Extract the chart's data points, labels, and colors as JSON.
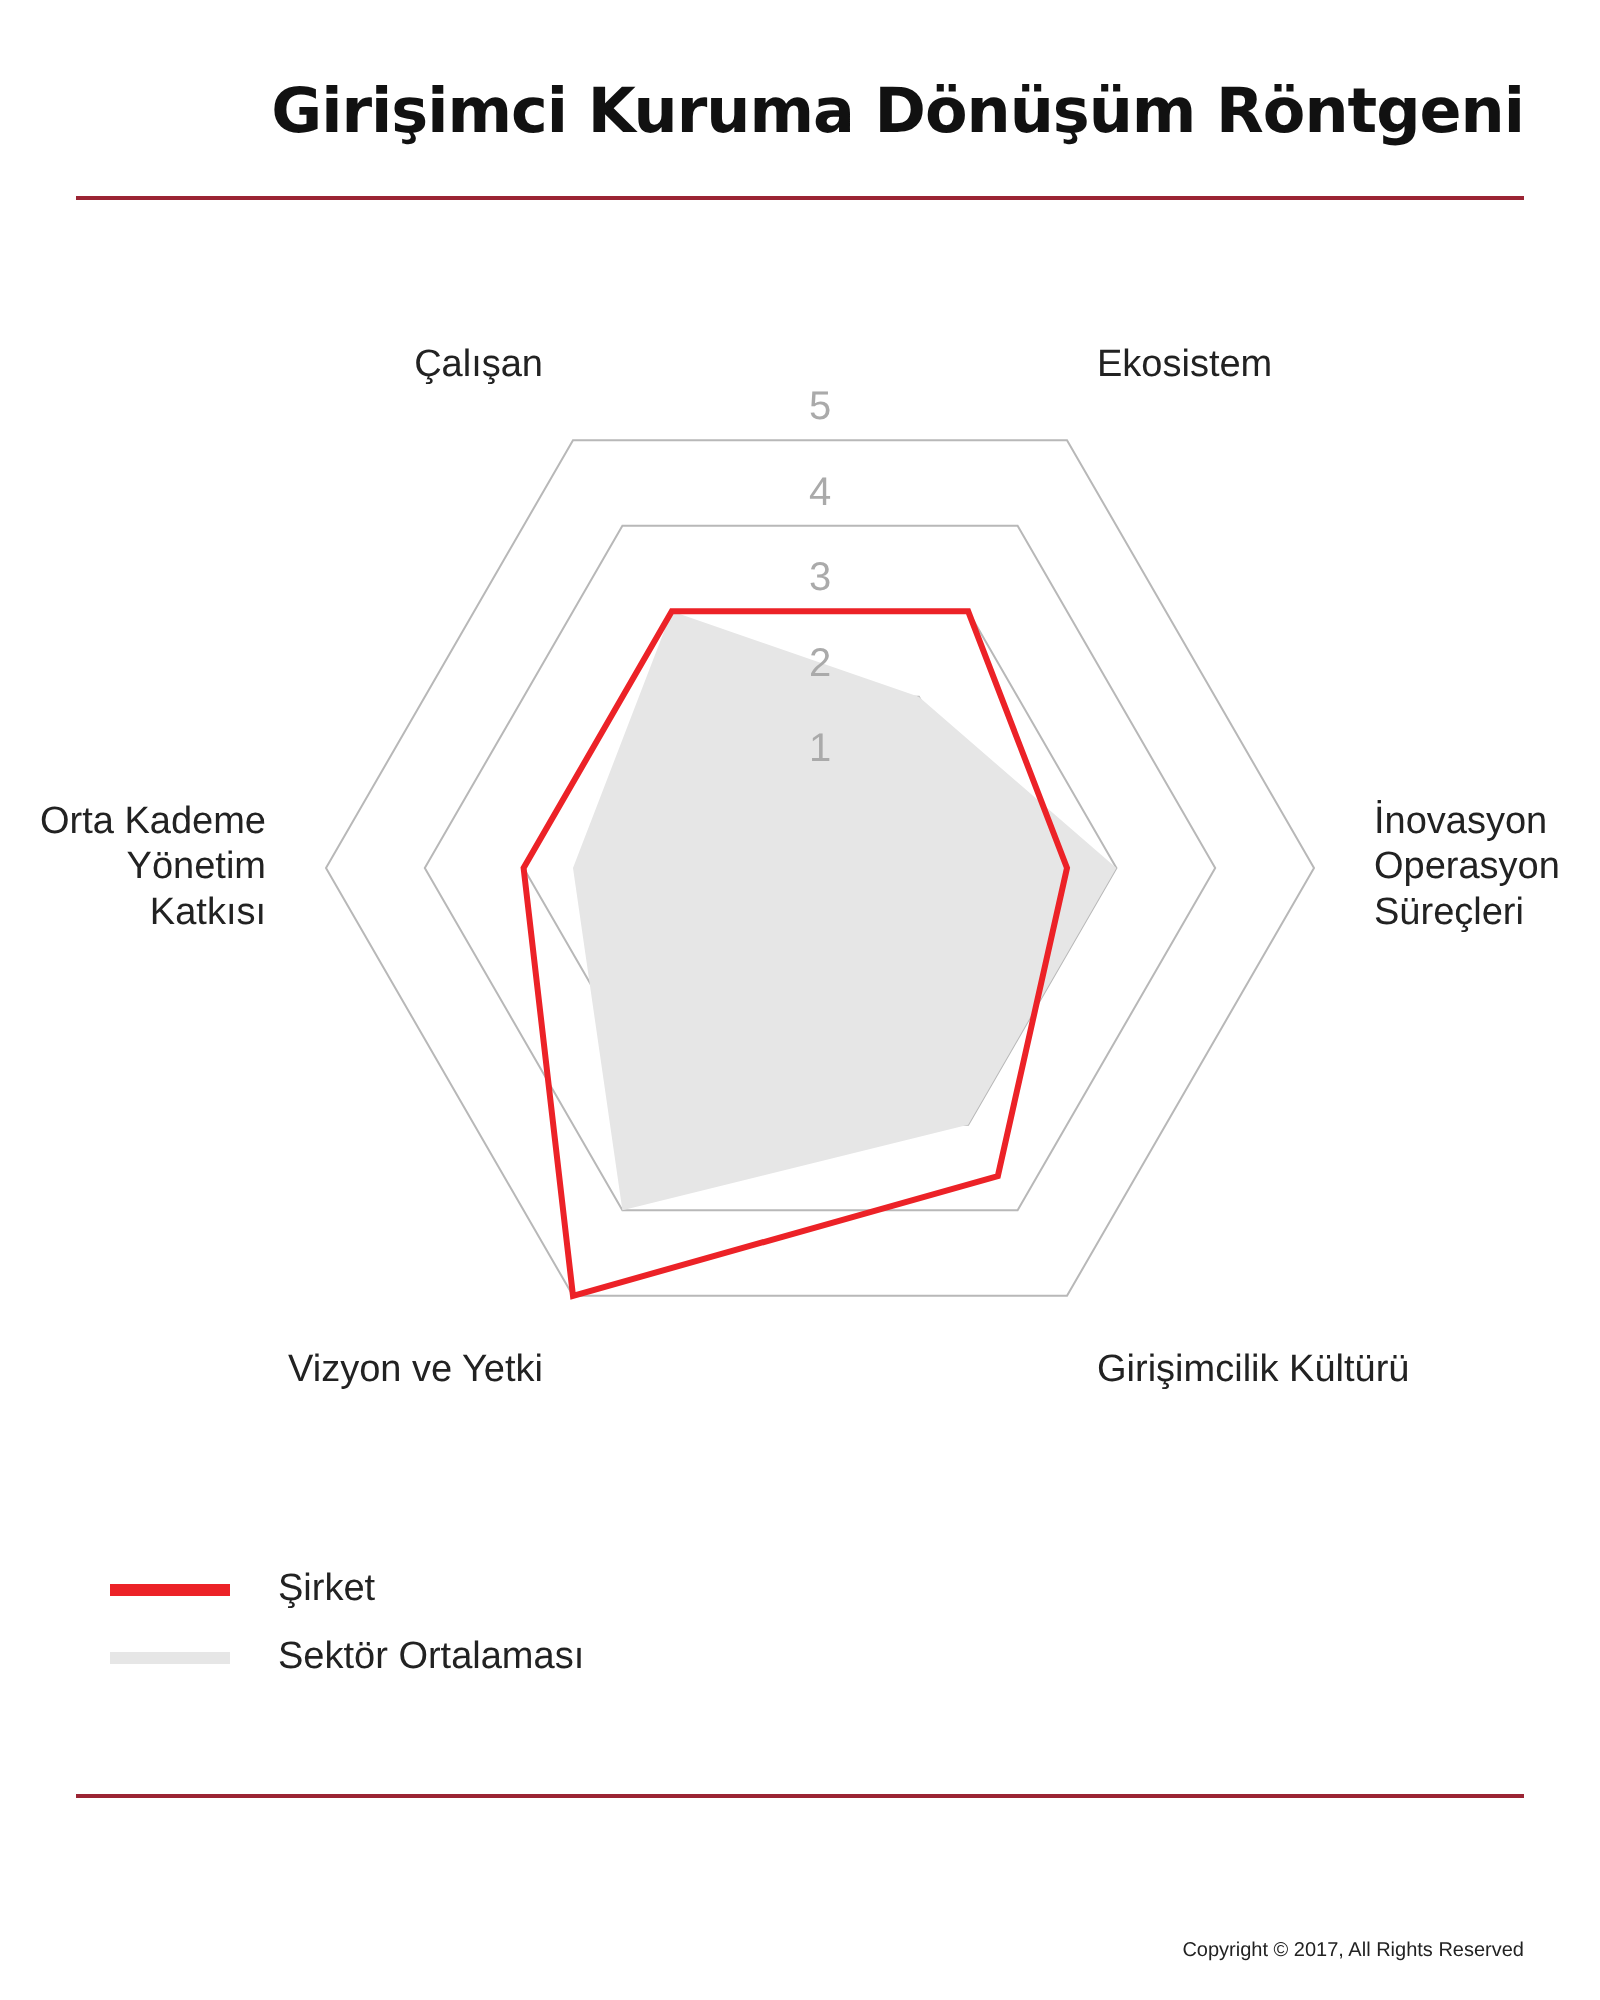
{
  "chart_data": {
    "type": "radar",
    "title": "Girişimci Kuruma Dönüşüm Röntgeni",
    "categories": [
      "Ekosistem",
      "İnovasyon Operasyon Süreçleri",
      "Girişimcilik Kültürü",
      "Vizyon ve Yetki",
      "Orta Kademe Yönetim Katkısı",
      "Çalışan"
    ],
    "series": [
      {
        "name": "Şirket",
        "color": "#ec2227",
        "values": [
          3,
          2.5,
          3.6,
          5,
          3,
          3
        ]
      },
      {
        "name": "Sektör Ortalaması",
        "type": "area",
        "color": "#e6e6e6",
        "values": [
          2,
          3,
          3,
          4,
          2.5,
          3
        ]
      }
    ],
    "ylim": [
      0,
      5
    ],
    "yticks": [
      1,
      2,
      3,
      4,
      5
    ],
    "grid": true,
    "legend": "bottom left",
    "marker": "none",
    "annotations": [
      "Copyright © 2017, All Rights Reserved"
    ]
  }
}
